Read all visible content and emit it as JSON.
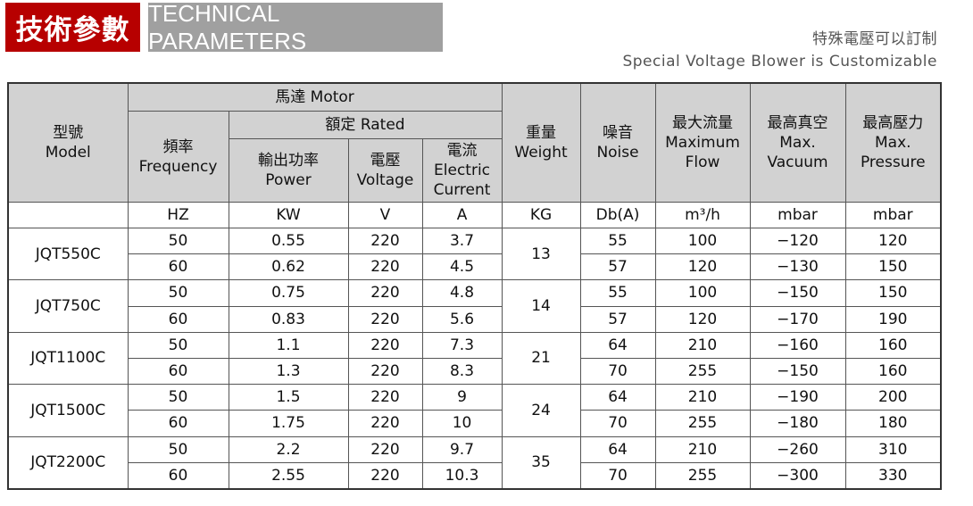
{
  "header": {
    "title_cn": "技術參數",
    "title_en": "TECHNICAL PARAMETERS",
    "note_cn": "特殊電壓可以訂制",
    "note_en": "Special Voltage Blower is Customizable"
  },
  "colors": {
    "title_bg": "#b70000",
    "subtitle_bg": "#a0a0a0",
    "header_bg": "#d2d2d2"
  },
  "table": {
    "model": {
      "cn": "型號",
      "en": "Model"
    },
    "motor": "馬達 Motor",
    "rated": "額定 Rated",
    "frequency": {
      "cn": "頻率",
      "en": "Frequency"
    },
    "power": {
      "cn": "輸出功率",
      "en": "Power"
    },
    "voltage": {
      "cn": "電壓",
      "en": "Voltage"
    },
    "current": {
      "cn": "電流",
      "en1": "Electric",
      "en2": "Current"
    },
    "weight": {
      "cn": "重量",
      "en": "Weight"
    },
    "noise": {
      "cn": "噪音",
      "en": "Noise"
    },
    "flow": {
      "cn": "最大流量",
      "en1": "Maximum",
      "en2": "Flow"
    },
    "vacuum": {
      "cn": "最高真空",
      "en1": "Max.",
      "en2": "Vacuum"
    },
    "pressure": {
      "cn": "最高壓力",
      "en1": "Max.",
      "en2": "Pressure"
    },
    "units": [
      "",
      "HZ",
      "KW",
      "V",
      "A",
      "KG",
      "Db(A)",
      "m³/h",
      "mbar",
      "mbar"
    ],
    "models": [
      {
        "name": "JQT550C",
        "weight": "13",
        "rows": [
          [
            "50",
            "0.55",
            "220",
            "3.7",
            "55",
            "100",
            "−120",
            "120"
          ],
          [
            "60",
            "0.62",
            "220",
            "4.5",
            "57",
            "120",
            "−130",
            "150"
          ]
        ]
      },
      {
        "name": "JQT750C",
        "weight": "14",
        "rows": [
          [
            "50",
            "0.75",
            "220",
            "4.8",
            "55",
            "100",
            "−150",
            "150"
          ],
          [
            "60",
            "0.83",
            "220",
            "5.6",
            "57",
            "120",
            "−170",
            "190"
          ]
        ]
      },
      {
        "name": "JQT1100C",
        "weight": "21",
        "rows": [
          [
            "50",
            "1.1",
            "220",
            "7.3",
            "64",
            "210",
            "−160",
            "160"
          ],
          [
            "60",
            "1.3",
            "220",
            "8.3",
            "70",
            "255",
            "−150",
            "160"
          ]
        ]
      },
      {
        "name": "JQT1500C",
        "weight": "24",
        "rows": [
          [
            "50",
            "1.5",
            "220",
            "9",
            "64",
            "210",
            "−190",
            "200"
          ],
          [
            "60",
            "1.75",
            "220",
            "10",
            "70",
            "255",
            "−180",
            "180"
          ]
        ]
      },
      {
        "name": "JQT2200C",
        "weight": "35",
        "rows": [
          [
            "50",
            "2.2",
            "220",
            "9.7",
            "64",
            "210",
            "−260",
            "310"
          ],
          [
            "60",
            "2.55",
            "220",
            "10.3",
            "70",
            "255",
            "−300",
            "330"
          ]
        ]
      }
    ]
  }
}
